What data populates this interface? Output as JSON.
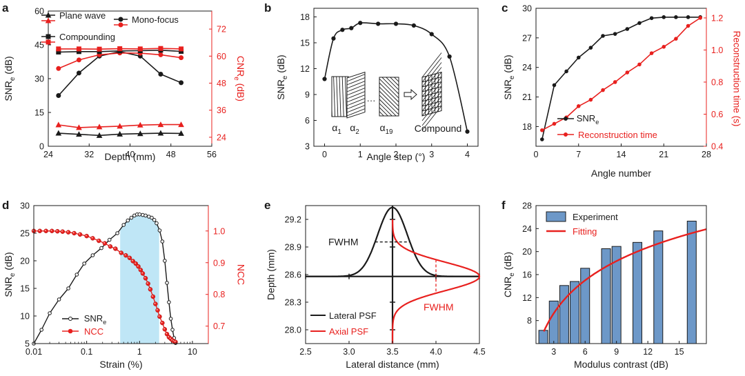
{
  "colors": {
    "black": "#1a1a1a",
    "red": "#e8201e",
    "bar": "#6d98c8",
    "shade": "#bfe6f6"
  },
  "chart_data": [
    {
      "panel": "a",
      "type": "line",
      "xlabel": "Depth (mm)",
      "ylabel": "SNR",
      "ylabel_sub": "e",
      "ylabel_tail": " (dB)",
      "y2label": "CNR",
      "y2label_sub": "e",
      "y2label_tail": " (dB)",
      "xlim": [
        24,
        56
      ],
      "ylim": [
        0,
        60
      ],
      "y2lim": [
        20,
        80
      ],
      "xticks": [
        24,
        32,
        40,
        48,
        56
      ],
      "yticks": [
        0,
        15,
        30,
        45,
        60
      ],
      "y2ticks": [
        24,
        36,
        48,
        60,
        72
      ],
      "legend": [
        "Plane wave",
        "Mono-focus",
        "Compounding"
      ],
      "series": [
        {
          "name": "Plane wave",
          "axis": "left",
          "color": "black",
          "marker": "triangle",
          "x": [
            26,
            30,
            34,
            38,
            42,
            46,
            50
          ],
          "y": [
            5.8,
            5.3,
            4.8,
            5.4,
            5.6,
            5.8,
            5.7
          ]
        },
        {
          "name": "Plane wave",
          "axis": "right",
          "color": "red",
          "marker": "triangle",
          "x": [
            26,
            30,
            34,
            38,
            42,
            46,
            50
          ],
          "y": [
            29.5,
            28.3,
            28.6,
            28.9,
            29.4,
            29.6,
            29.6
          ]
        },
        {
          "name": "Mono-focus",
          "axis": "left",
          "color": "black",
          "marker": "circle",
          "x": [
            26,
            30,
            34,
            38,
            42,
            46,
            50
          ],
          "y": [
            22.5,
            32.5,
            40,
            42,
            40,
            32,
            28.2
          ]
        },
        {
          "name": "Mono-focus",
          "axis": "right",
          "color": "red",
          "marker": "circle",
          "x": [
            26,
            30,
            34,
            38,
            42,
            46,
            50
          ],
          "y": [
            54.5,
            58.3,
            60.6,
            61.4,
            61.3,
            60.6,
            59.3
          ]
        },
        {
          "name": "Compounding",
          "axis": "left",
          "color": "black",
          "marker": "square",
          "x": [
            26,
            30,
            34,
            38,
            42,
            46,
            50
          ],
          "y": [
            41.8,
            42,
            42,
            42.3,
            42.4,
            42.6,
            42.1
          ]
        },
        {
          "name": "Compounding",
          "axis": "right",
          "color": "red",
          "marker": "square",
          "x": [
            26,
            30,
            34,
            38,
            42,
            46,
            50
          ],
          "y": [
            63.2,
            63.2,
            63.1,
            63.3,
            63.2,
            63.4,
            63.2
          ]
        }
      ]
    },
    {
      "panel": "b",
      "type": "line",
      "xlabel": "Angle step (°)",
      "ylabel": "SNR",
      "ylabel_sub": "e",
      "ylabel_tail": " (dB)",
      "xlim": [
        -0.3,
        4.3
      ],
      "ylim": [
        3,
        19
      ],
      "xticks": [
        0,
        1,
        2,
        3,
        4
      ],
      "yticks": [
        3,
        6,
        9,
        12,
        15,
        18
      ],
      "series": [
        {
          "color": "black",
          "marker": "circle",
          "x": [
            0,
            0.25,
            0.5,
            0.75,
            1,
            1.5,
            2,
            2.5,
            3,
            3.5,
            4
          ],
          "y": [
            10.8,
            15.5,
            16.5,
            16.7,
            17.3,
            17.2,
            17.2,
            17.0,
            16.0,
            13.4,
            4.7
          ]
        }
      ],
      "inset_labels": [
        "α",
        "1",
        "α",
        "2",
        "···",
        "α",
        "19",
        "Compound"
      ]
    },
    {
      "panel": "c",
      "type": "line",
      "xlabel": "Angle number",
      "ylabel": "SNR",
      "ylabel_sub": "e",
      "ylabel_tail": " (dB)",
      "y2label": "Reconstruction time (s)",
      "xlim": [
        0,
        28
      ],
      "ylim": [
        16,
        30
      ],
      "y2lim": [
        0.4,
        1.26
      ],
      "xticks": [
        0,
        7,
        14,
        21,
        28
      ],
      "yticks": [
        18,
        21,
        24,
        27,
        30
      ],
      "y2ticks": [
        0.4,
        0.6,
        0.8,
        1.0,
        1.2
      ],
      "legend": [
        "SNRe",
        "Reconstruction time"
      ],
      "series": [
        {
          "name": "SNRe",
          "axis": "left",
          "color": "black",
          "marker": "circle",
          "x": [
            1,
            3,
            5,
            7,
            9,
            11,
            13,
            15,
            17,
            19,
            21,
            23,
            25,
            27
          ],
          "y": [
            16.7,
            22.2,
            23.6,
            25,
            26,
            27.2,
            27.4,
            27.9,
            28.5,
            29,
            29.1,
            29.1,
            29.1,
            29.1
          ]
        },
        {
          "name": "Reconstruction time",
          "axis": "right",
          "color": "red",
          "marker": "circle",
          "x": [
            1,
            3,
            5,
            7,
            9,
            11,
            13,
            15,
            17,
            19,
            21,
            23,
            25,
            27
          ],
          "y": [
            0.5,
            0.54,
            0.58,
            0.65,
            0.69,
            0.75,
            0.8,
            0.86,
            0.91,
            0.98,
            1.02,
            1.07,
            1.15,
            1.2
          ]
        }
      ]
    },
    {
      "panel": "d",
      "type": "line",
      "xscale": "log",
      "xlabel": "Strain (%)",
      "ylabel": "SNR",
      "ylabel_sub": "e",
      "ylabel_tail": " (dB)",
      "y2label": "NCC",
      "xlim": [
        0.01,
        20
      ],
      "ylim": [
        5,
        30
      ],
      "y2lim": [
        0.645,
        1.08
      ],
      "xticks": [
        0.01,
        0.1,
        1,
        10
      ],
      "xticklabels": [
        "0.01",
        "0.1",
        "1",
        "10"
      ],
      "yticks": [
        5,
        10,
        15,
        20,
        25,
        30
      ],
      "y2ticks": [
        0.7,
        0.8,
        0.9,
        1.0
      ],
      "shaded_range": [
        0.43,
        2.35
      ],
      "legend": [
        "SNRe",
        "NCC"
      ],
      "series": [
        {
          "name": "SNRe",
          "axis": "left",
          "color": "black",
          "marker": "circle",
          "x": [
            0.01,
            0.014,
            0.02,
            0.03,
            0.045,
            0.065,
            0.09,
            0.13,
            0.19,
            0.27,
            0.38,
            0.5,
            0.6,
            0.7,
            0.8,
            0.9,
            1.0,
            1.15,
            1.3,
            1.5,
            1.7,
            1.9,
            2.1,
            2.4,
            2.7,
            3.0,
            3.3,
            3.6,
            3.9,
            4.2,
            4.5,
            4.8
          ],
          "y": [
            5,
            7.5,
            10.5,
            13,
            15,
            17.5,
            19.5,
            21,
            22.3,
            23.8,
            25,
            26.5,
            27.3,
            27.8,
            28.2,
            28.4,
            28.4,
            28.3,
            28.2,
            28,
            27.8,
            27.4,
            26.8,
            25.5,
            23.5,
            20,
            16,
            12.5,
            9.5,
            7.5,
            6,
            5.1
          ]
        },
        {
          "name": "NCC",
          "axis": "right",
          "color": "red",
          "marker": "circle",
          "x": [
            0.01,
            0.013,
            0.017,
            0.022,
            0.028,
            0.035,
            0.045,
            0.058,
            0.075,
            0.1,
            0.13,
            0.17,
            0.22,
            0.28,
            0.35,
            0.45,
            0.55,
            0.65,
            0.75,
            0.85,
            0.95,
            1.05,
            1.15,
            1.3,
            1.45,
            1.6,
            1.8,
            2.0,
            2.2,
            2.4,
            2.7,
            3.0,
            3.3,
            3.6,
            3.9,
            4.2,
            4.5,
            4.8
          ],
          "y": [
            1.0,
            1.0,
            1.0,
            1.0,
            0.999,
            0.998,
            0.996,
            0.993,
            0.989,
            0.984,
            0.977,
            0.969,
            0.961,
            0.951,
            0.944,
            0.931,
            0.923,
            0.915,
            0.905,
            0.897,
            0.888,
            0.877,
            0.866,
            0.851,
            0.834,
            0.816,
            0.793,
            0.77,
            0.75,
            0.73,
            0.71,
            0.69,
            0.675,
            0.665,
            0.66,
            0.655,
            0.652,
            0.65
          ]
        }
      ]
    },
    {
      "panel": "e",
      "type": "line",
      "xlabel": "Lateral distance (mm)",
      "ylabel": "Depth (mm)",
      "xlim": [
        2.5,
        4.5
      ],
      "ylim": [
        27.85,
        29.35
      ],
      "xticks": [
        2.5,
        3.0,
        3.5,
        4.0,
        4.5
      ],
      "xticklabels": [
        "2.5",
        "3.0",
        "3.5",
        "4.0",
        "4.5"
      ],
      "yticks": [
        28.0,
        28.3,
        28.6,
        28.9,
        29.2
      ],
      "yticklabels": [
        "28.0",
        "28.3",
        "28.6",
        "28.9",
        "29.2"
      ],
      "annotations": [
        "FWHM",
        "FWHM"
      ],
      "legend": [
        "Lateral PSF",
        "Axial PSF"
      ],
      "lateral_psf": {
        "center": 3.5,
        "sigma": 0.17,
        "baseline": 28.58,
        "peak": 29.33
      },
      "axial_psf": {
        "center": 28.58,
        "sigma": 0.155,
        "baseline": 3.5,
        "peak": 4.5,
        "range": [
          27.85,
          29.2
        ]
      }
    },
    {
      "panel": "f",
      "type": "bar",
      "xlabel": "Modulus contrast (dB)",
      "ylabel": "CNR",
      "ylabel_sub": "e",
      "ylabel_tail": " (dB)",
      "xlim": [
        1.3,
        17.6
      ],
      "ylim": [
        4,
        28
      ],
      "xticks": [
        3,
        6,
        9,
        12,
        15
      ],
      "yticks": [
        8,
        12,
        16,
        20,
        24,
        28
      ],
      "legend": [
        "Experiment",
        "Fitting"
      ],
      "x": [
        2,
        3,
        4,
        5,
        6,
        8,
        9,
        11,
        13,
        16.2
      ],
      "values": [
        6.3,
        11.4,
        14.1,
        14.8,
        17.1,
        20.5,
        20.9,
        21.6,
        23.6,
        25.3
      ],
      "fitting": {
        "a": 8.27,
        "b": 5.86,
        "xrange": [
          2.05,
          17.6
        ]
      }
    }
  ],
  "panel_letters": [
    "a",
    "b",
    "c",
    "d",
    "e",
    "f"
  ]
}
